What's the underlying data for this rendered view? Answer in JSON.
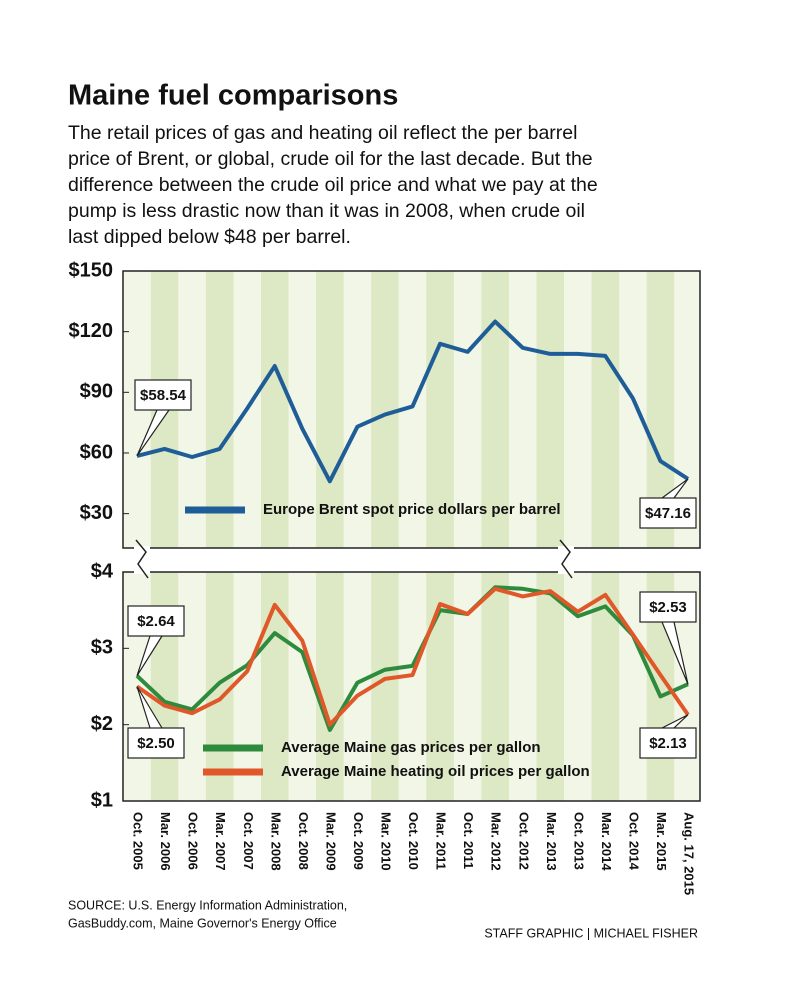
{
  "title": "Maine fuel comparisons",
  "subtitle": [
    "The retail prices of gas and heating oil reflect the per barrel",
    "price of Brent, or global, crude oil for the last decade. But the",
    "difference between the crude oil price and what we pay at the",
    "pump is less drastic now than it was in 2008, when crude oil",
    "last dipped below $48 per barrel."
  ],
  "source": [
    "SOURCE: U.S. Energy Information Administration,",
    "GasBuddy.com, Maine Governor's Energy Office"
  ],
  "credit": "STAFF GRAPHIC | MICHAEL FISHER",
  "chart_data": [
    {
      "type": "line",
      "categories": [
        "Oct. 2005",
        "Mar. 2006",
        "Oct. 2006",
        "Mar. 2007",
        "Oct. 2007",
        "Mar. 2008",
        "Oct. 2008",
        "Mar. 2009",
        "Oct. 2009",
        "Mar. 2010",
        "Oct. 2010",
        "Mar. 2011",
        "Oct. 2011",
        "Mar. 2012",
        "Oct. 2012",
        "Mar. 2013",
        "Oct. 2013",
        "Mar. 2014",
        "Oct. 2014",
        "Mar. 2015",
        "Aug. 17, 2015"
      ],
      "series": [
        {
          "name": "Europe Brent spot price dollars per barrel",
          "color": "#1f5d99",
          "values": [
            58.54,
            62,
            58,
            62,
            82,
            103,
            72,
            46,
            73,
            79,
            83,
            114,
            110,
            125,
            112,
            109,
            109,
            108,
            87,
            56,
            47.16
          ],
          "value_labels": [
            "$58.54",
            null,
            null,
            null,
            null,
            null,
            null,
            null,
            null,
            null,
            null,
            null,
            null,
            null,
            null,
            null,
            null,
            null,
            null,
            null,
            "$47.16"
          ]
        }
      ],
      "ylim": [
        13,
        150
      ],
      "yticks": [
        {
          "value": 30,
          "label": "$30"
        },
        {
          "value": 60,
          "label": "$60"
        },
        {
          "value": 90,
          "label": "$90"
        },
        {
          "value": 120,
          "label": "$120"
        },
        {
          "value": 150,
          "label": "$150"
        }
      ]
    },
    {
      "type": "line",
      "categories": [
        "Oct. 2005",
        "Mar. 2006",
        "Oct. 2006",
        "Mar. 2007",
        "Oct. 2007",
        "Mar. 2008",
        "Oct. 2008",
        "Mar. 2009",
        "Oct. 2009",
        "Mar. 2010",
        "Oct. 2010",
        "Mar. 2011",
        "Oct. 2011",
        "Mar. 2012",
        "Oct. 2012",
        "Mar. 2013",
        "Oct. 2013",
        "Mar. 2014",
        "Oct. 2014",
        "Mar. 2015",
        "Aug. 17, 2015"
      ],
      "series": [
        {
          "name": "Average Maine gas prices per gallon",
          "color": "#2e8b3e",
          "values": [
            2.64,
            2.3,
            2.2,
            2.55,
            2.78,
            3.2,
            2.95,
            1.93,
            2.55,
            2.72,
            2.77,
            3.5,
            3.45,
            3.8,
            3.78,
            3.72,
            3.42,
            3.55,
            3.17,
            2.37,
            2.53
          ],
          "value_labels": [
            "$2.64",
            null,
            null,
            null,
            null,
            null,
            null,
            null,
            null,
            null,
            null,
            null,
            null,
            null,
            null,
            null,
            null,
            null,
            null,
            null,
            "$2.53"
          ]
        },
        {
          "name": "Average Maine heating oil prices per gallon",
          "color": "#e0582a",
          "values": [
            2.5,
            2.25,
            2.15,
            2.33,
            2.7,
            3.57,
            3.1,
            2.0,
            2.38,
            2.6,
            2.65,
            3.58,
            3.45,
            3.78,
            3.68,
            3.75,
            3.48,
            3.7,
            3.18,
            2.65,
            2.13
          ],
          "value_labels": [
            "$2.50",
            null,
            null,
            null,
            null,
            null,
            null,
            null,
            null,
            null,
            null,
            null,
            null,
            null,
            null,
            null,
            null,
            null,
            null,
            null,
            "$2.13"
          ]
        }
      ],
      "ylim": [
        1,
        4
      ],
      "yticks": [
        {
          "value": 1,
          "label": "$1"
        },
        {
          "value": 2,
          "label": "$2"
        },
        {
          "value": 3,
          "label": "$3"
        },
        {
          "value": 4,
          "label": "$4"
        }
      ]
    }
  ]
}
